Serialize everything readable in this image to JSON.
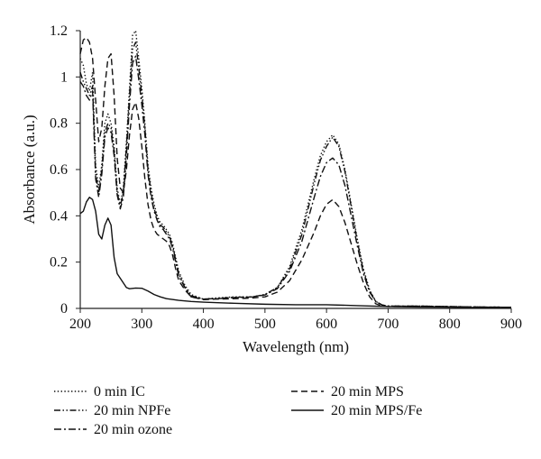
{
  "chart_data": {
    "type": "line",
    "title": "",
    "xlabel": "Wavelength (nm)",
    "ylabel": "Absorbance (a.u.)",
    "xlim": [
      200,
      900
    ],
    "ylim": [
      0,
      1.2
    ],
    "xticks": [
      "200",
      "300",
      "400",
      "500",
      "600",
      "700",
      "800",
      "900"
    ],
    "yticks": [
      "0",
      "0.2",
      "0.4",
      "0.6",
      "0.8",
      "1",
      "1.2"
    ],
    "grid": false,
    "legend_position": "bottom",
    "series": [
      {
        "name": "0 min IC",
        "style": "dotted",
        "points": [
          [
            200,
            1.08
          ],
          [
            205,
            1.05
          ],
          [
            210,
            0.97
          ],
          [
            215,
            0.94
          ],
          [
            220,
            1.02
          ],
          [
            225,
            0.62
          ],
          [
            230,
            0.52
          ],
          [
            235,
            0.62
          ],
          [
            240,
            0.8
          ],
          [
            245,
            0.84
          ],
          [
            250,
            0.8
          ],
          [
            255,
            0.7
          ],
          [
            260,
            0.52
          ],
          [
            265,
            0.45
          ],
          [
            270,
            0.52
          ],
          [
            275,
            0.72
          ],
          [
            280,
            0.95
          ],
          [
            285,
            1.18
          ],
          [
            290,
            1.2
          ],
          [
            295,
            1.08
          ],
          [
            300,
            0.95
          ],
          [
            305,
            0.8
          ],
          [
            310,
            0.62
          ],
          [
            315,
            0.52
          ],
          [
            320,
            0.45
          ],
          [
            325,
            0.4
          ],
          [
            330,
            0.37
          ],
          [
            335,
            0.36
          ],
          [
            340,
            0.34
          ],
          [
            345,
            0.32
          ],
          [
            350,
            0.28
          ],
          [
            355,
            0.22
          ],
          [
            360,
            0.16
          ],
          [
            370,
            0.1
          ],
          [
            380,
            0.06
          ],
          [
            400,
            0.04
          ],
          [
            420,
            0.045
          ],
          [
            450,
            0.05
          ],
          [
            480,
            0.05
          ],
          [
            500,
            0.06
          ],
          [
            520,
            0.09
          ],
          [
            540,
            0.18
          ],
          [
            560,
            0.34
          ],
          [
            580,
            0.56
          ],
          [
            590,
            0.66
          ],
          [
            600,
            0.72
          ],
          [
            610,
            0.75
          ],
          [
            620,
            0.71
          ],
          [
            630,
            0.6
          ],
          [
            640,
            0.45
          ],
          [
            650,
            0.3
          ],
          [
            660,
            0.17
          ],
          [
            670,
            0.08
          ],
          [
            680,
            0.03
          ],
          [
            690,
            0.015
          ],
          [
            700,
            0.01
          ],
          [
            750,
            0.01
          ],
          [
            800,
            0.008
          ],
          [
            850,
            0.006
          ],
          [
            900,
            0.005
          ]
        ]
      },
      {
        "name": "20 min NPFe",
        "style": "dash-dot-dot",
        "points": [
          [
            200,
            1.02
          ],
          [
            205,
            0.98
          ],
          [
            210,
            0.95
          ],
          [
            215,
            0.92
          ],
          [
            220,
            0.96
          ],
          [
            225,
            0.58
          ],
          [
            230,
            0.5
          ],
          [
            235,
            0.6
          ],
          [
            240,
            0.76
          ],
          [
            245,
            0.8
          ],
          [
            250,
            0.78
          ],
          [
            255,
            0.68
          ],
          [
            260,
            0.5
          ],
          [
            265,
            0.44
          ],
          [
            270,
            0.5
          ],
          [
            275,
            0.7
          ],
          [
            280,
            0.92
          ],
          [
            285,
            1.12
          ],
          [
            290,
            1.15
          ],
          [
            295,
            1.04
          ],
          [
            300,
            0.92
          ],
          [
            305,
            0.78
          ],
          [
            310,
            0.6
          ],
          [
            315,
            0.5
          ],
          [
            320,
            0.43
          ],
          [
            325,
            0.39
          ],
          [
            330,
            0.36
          ],
          [
            335,
            0.35
          ],
          [
            340,
            0.33
          ],
          [
            345,
            0.31
          ],
          [
            350,
            0.27
          ],
          [
            355,
            0.21
          ],
          [
            360,
            0.15
          ],
          [
            370,
            0.09
          ],
          [
            380,
            0.055
          ],
          [
            400,
            0.04
          ],
          [
            420,
            0.043
          ],
          [
            450,
            0.048
          ],
          [
            480,
            0.05
          ],
          [
            500,
            0.06
          ],
          [
            520,
            0.09
          ],
          [
            540,
            0.17
          ],
          [
            560,
            0.32
          ],
          [
            580,
            0.54
          ],
          [
            590,
            0.64
          ],
          [
            600,
            0.7
          ],
          [
            610,
            0.74
          ],
          [
            620,
            0.7
          ],
          [
            630,
            0.59
          ],
          [
            640,
            0.44
          ],
          [
            650,
            0.29
          ],
          [
            660,
            0.16
          ],
          [
            670,
            0.075
          ],
          [
            680,
            0.03
          ],
          [
            690,
            0.015
          ],
          [
            700,
            0.01
          ],
          [
            750,
            0.01
          ],
          [
            800,
            0.008
          ],
          [
            850,
            0.006
          ],
          [
            900,
            0.005
          ]
        ]
      },
      {
        "name": "20 min ozone",
        "style": "dash-dot",
        "points": [
          [
            200,
            0.98
          ],
          [
            205,
            0.96
          ],
          [
            210,
            0.92
          ],
          [
            215,
            0.9
          ],
          [
            220,
            0.94
          ],
          [
            225,
            0.56
          ],
          [
            230,
            0.48
          ],
          [
            235,
            0.58
          ],
          [
            240,
            0.74
          ],
          [
            245,
            0.78
          ],
          [
            250,
            0.76
          ],
          [
            255,
            0.66
          ],
          [
            260,
            0.49
          ],
          [
            265,
            0.43
          ],
          [
            270,
            0.48
          ],
          [
            275,
            0.66
          ],
          [
            280,
            0.88
          ],
          [
            285,
            1.06
          ],
          [
            290,
            1.09
          ],
          [
            295,
            0.99
          ],
          [
            300,
            0.88
          ],
          [
            305,
            0.75
          ],
          [
            310,
            0.58
          ],
          [
            315,
            0.48
          ],
          [
            320,
            0.42
          ],
          [
            325,
            0.38
          ],
          [
            330,
            0.35
          ],
          [
            335,
            0.34
          ],
          [
            340,
            0.32
          ],
          [
            345,
            0.3
          ],
          [
            350,
            0.26
          ],
          [
            355,
            0.2
          ],
          [
            360,
            0.14
          ],
          [
            370,
            0.09
          ],
          [
            380,
            0.05
          ],
          [
            400,
            0.04
          ],
          [
            420,
            0.042
          ],
          [
            450,
            0.046
          ],
          [
            480,
            0.05
          ],
          [
            500,
            0.058
          ],
          [
            520,
            0.085
          ],
          [
            540,
            0.16
          ],
          [
            560,
            0.29
          ],
          [
            580,
            0.48
          ],
          [
            590,
            0.57
          ],
          [
            600,
            0.63
          ],
          [
            610,
            0.65
          ],
          [
            620,
            0.62
          ],
          [
            630,
            0.53
          ],
          [
            640,
            0.4
          ],
          [
            650,
            0.27
          ],
          [
            660,
            0.15
          ],
          [
            670,
            0.07
          ],
          [
            680,
            0.03
          ],
          [
            690,
            0.015
          ],
          [
            700,
            0.01
          ],
          [
            750,
            0.01
          ],
          [
            800,
            0.008
          ],
          [
            850,
            0.006
          ],
          [
            900,
            0.005
          ]
        ]
      },
      {
        "name": "20 min MPS",
        "style": "dashed",
        "points": [
          [
            200,
            1.1
          ],
          [
            205,
            1.16
          ],
          [
            210,
            1.17
          ],
          [
            215,
            1.15
          ],
          [
            220,
            1.08
          ],
          [
            225,
            0.9
          ],
          [
            230,
            0.72
          ],
          [
            235,
            0.78
          ],
          [
            240,
            0.96
          ],
          [
            245,
            1.08
          ],
          [
            250,
            1.1
          ],
          [
            255,
            0.92
          ],
          [
            260,
            0.65
          ],
          [
            265,
            0.52
          ],
          [
            270,
            0.5
          ],
          [
            275,
            0.6
          ],
          [
            280,
            0.75
          ],
          [
            285,
            0.86
          ],
          [
            290,
            0.89
          ],
          [
            295,
            0.82
          ],
          [
            300,
            0.7
          ],
          [
            305,
            0.56
          ],
          [
            310,
            0.45
          ],
          [
            315,
            0.38
          ],
          [
            320,
            0.34
          ],
          [
            325,
            0.32
          ],
          [
            330,
            0.31
          ],
          [
            335,
            0.3
          ],
          [
            340,
            0.29
          ],
          [
            345,
            0.27
          ],
          [
            350,
            0.23
          ],
          [
            355,
            0.17
          ],
          [
            360,
            0.12
          ],
          [
            370,
            0.08
          ],
          [
            380,
            0.05
          ],
          [
            400,
            0.038
          ],
          [
            420,
            0.04
          ],
          [
            450,
            0.042
          ],
          [
            480,
            0.045
          ],
          [
            500,
            0.05
          ],
          [
            520,
            0.07
          ],
          [
            540,
            0.12
          ],
          [
            560,
            0.21
          ],
          [
            580,
            0.33
          ],
          [
            590,
            0.4
          ],
          [
            600,
            0.45
          ],
          [
            610,
            0.47
          ],
          [
            620,
            0.44
          ],
          [
            630,
            0.37
          ],
          [
            640,
            0.28
          ],
          [
            650,
            0.19
          ],
          [
            660,
            0.11
          ],
          [
            670,
            0.05
          ],
          [
            680,
            0.02
          ],
          [
            690,
            0.01
          ],
          [
            700,
            0.008
          ],
          [
            750,
            0.008
          ],
          [
            800,
            0.006
          ],
          [
            850,
            0.005
          ],
          [
            900,
            0.004
          ]
        ]
      },
      {
        "name": "20 min MPS/Fe",
        "style": "solid",
        "points": [
          [
            200,
            0.41
          ],
          [
            205,
            0.42
          ],
          [
            210,
            0.46
          ],
          [
            215,
            0.48
          ],
          [
            220,
            0.47
          ],
          [
            225,
            0.42
          ],
          [
            230,
            0.32
          ],
          [
            235,
            0.3
          ],
          [
            240,
            0.36
          ],
          [
            245,
            0.39
          ],
          [
            250,
            0.36
          ],
          [
            255,
            0.22
          ],
          [
            260,
            0.15
          ],
          [
            265,
            0.13
          ],
          [
            270,
            0.11
          ],
          [
            275,
            0.09
          ],
          [
            280,
            0.085
          ],
          [
            290,
            0.088
          ],
          [
            300,
            0.087
          ],
          [
            310,
            0.075
          ],
          [
            320,
            0.06
          ],
          [
            330,
            0.05
          ],
          [
            340,
            0.042
          ],
          [
            360,
            0.035
          ],
          [
            380,
            0.03
          ],
          [
            400,
            0.027
          ],
          [
            450,
            0.022
          ],
          [
            500,
            0.018
          ],
          [
            550,
            0.016
          ],
          [
            600,
            0.016
          ],
          [
            650,
            0.012
          ],
          [
            700,
            0.008
          ],
          [
            750,
            0.006
          ],
          [
            800,
            0.005
          ],
          [
            850,
            0.004
          ],
          [
            900,
            0.004
          ]
        ]
      }
    ]
  }
}
